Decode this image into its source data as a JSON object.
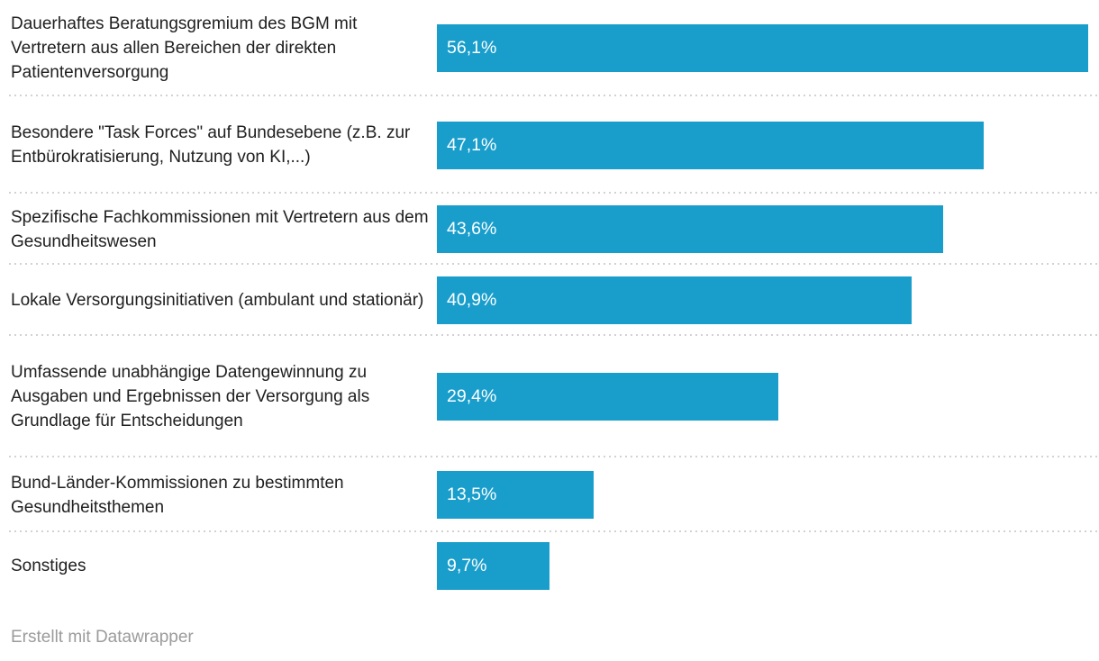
{
  "chart_data": {
    "type": "bar",
    "orientation": "horizontal",
    "title": "",
    "xlabel": "",
    "ylabel": "",
    "xlim": [
      0,
      56.1
    ],
    "grid": false,
    "legend": false,
    "bar_color": "#199ECC",
    "value_label_color": "#ffffff",
    "category_label_color": "#202020",
    "separator_color": "#d2d2d2",
    "categories": [
      "Dauerhaftes Beratungsgremium des BGM mit Vertretern aus allen Bereichen der direkten Patientenversorgung",
      "Besondere \"Task Forces\" auf Bundesebene (z.B. zur Entbürokratisierung, Nutzung von KI,...)",
      "Spezifische Fachkommissionen mit Vertretern aus dem Gesundheitswesen",
      "Lokale Versorgungsinitiativen (ambulant und stationär)",
      "Umfassende unabhängige Datengewinnung zu Ausgaben und Ergebnissen der Versorgung als Grundlage für Entscheidungen",
      "Bund-Länder-Kommissionen zu bestimmten Gesundheitsthemen",
      "Sonstiges"
    ],
    "values": [
      56.1,
      47.1,
      43.6,
      40.9,
      29.4,
      13.5,
      9.7
    ],
    "rows": [
      {
        "label": "Dauerhaftes Beratungsgremium des BGM mit Vertretern aus allen Bereichen der direkten Patientenversorgung",
        "value": 56.1,
        "value_label": "56,1%"
      },
      {
        "label": "Besondere \"Task Forces\" auf Bundesebene (z.B. zur Entbürokratisierung, Nutzung von KI,...)",
        "value": 47.1,
        "value_label": "47,1%"
      },
      {
        "label": "Spezifische Fachkommissionen mit Vertretern aus dem Gesundheitswesen",
        "value": 43.6,
        "value_label": "43,6%"
      },
      {
        "label": "Lokale Versorgungsinitiativen (ambulant und stationär)",
        "value": 40.9,
        "value_label": "40,9%"
      },
      {
        "label": "Umfassende unabhängige Datengewinnung zu Ausgaben und Ergebnissen der Versorgung als Grundlage für Entscheidungen",
        "value": 29.4,
        "value_label": "29,4%"
      },
      {
        "label": "Bund-Länder-Kommissionen zu bestimmten Gesundheitsthemen",
        "value": 13.5,
        "value_label": "13,5%"
      },
      {
        "label": "Sonstiges",
        "value": 9.7,
        "value_label": "9,7%"
      }
    ]
  },
  "footer": {
    "attribution": "Erstellt mit Datawrapper"
  }
}
